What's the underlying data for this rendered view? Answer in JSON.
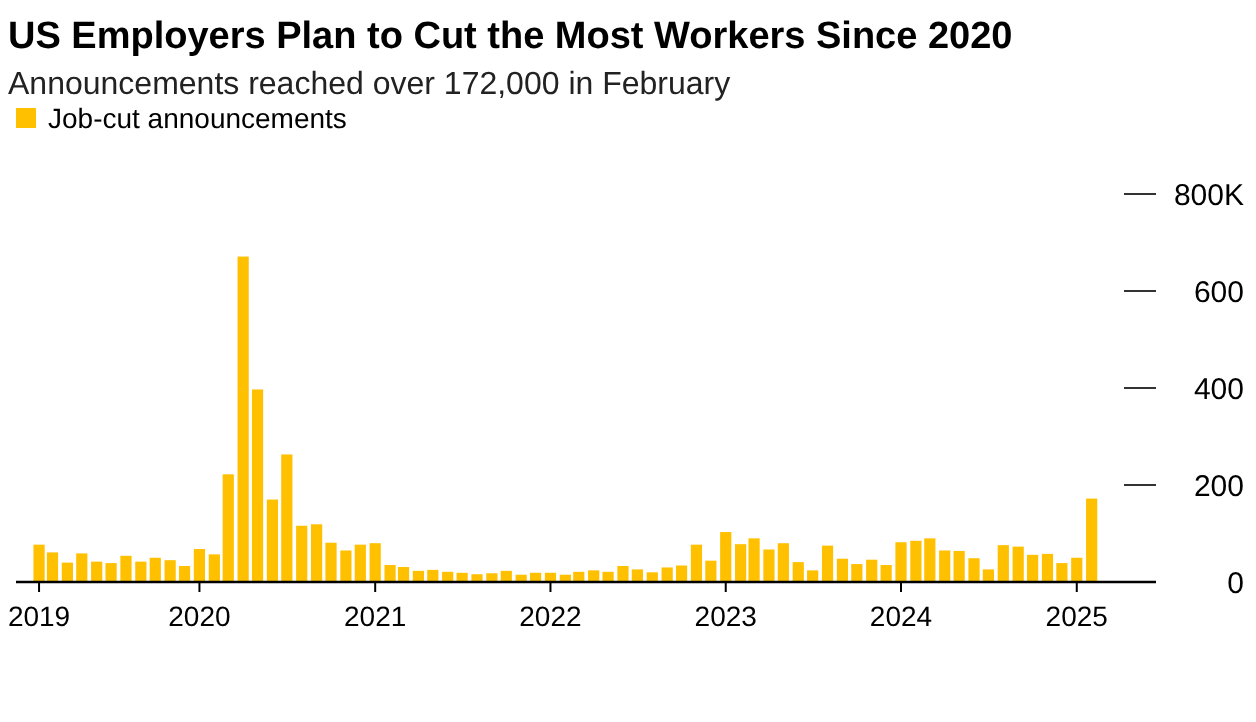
{
  "chart_data": {
    "type": "bar",
    "title": "US Employers Plan to Cut the Most Workers Since 2020",
    "subtitle": "Announcements reached over 172,000 in February",
    "x": [
      "2019-02",
      "2019-03",
      "2019-04",
      "2019-05",
      "2019-06",
      "2019-07",
      "2019-08",
      "2019-09",
      "2019-10",
      "2019-11",
      "2019-12",
      "2020-01",
      "2020-02",
      "2020-03",
      "2020-04",
      "2020-05",
      "2020-06",
      "2020-07",
      "2020-08",
      "2020-09",
      "2020-10",
      "2020-11",
      "2020-12",
      "2021-01",
      "2021-02",
      "2021-03",
      "2021-04",
      "2021-05",
      "2021-06",
      "2021-07",
      "2021-08",
      "2021-09",
      "2021-10",
      "2021-11",
      "2021-12",
      "2022-01",
      "2022-02",
      "2022-03",
      "2022-04",
      "2022-05",
      "2022-06",
      "2022-07",
      "2022-08",
      "2022-09",
      "2022-10",
      "2022-11",
      "2022-12",
      "2023-01",
      "2023-02",
      "2023-03",
      "2023-04",
      "2023-05",
      "2023-06",
      "2023-07",
      "2023-08",
      "2023-09",
      "2023-10",
      "2023-11",
      "2023-12",
      "2024-01",
      "2024-02",
      "2024-03",
      "2024-04",
      "2024-05",
      "2024-06",
      "2024-07",
      "2024-08",
      "2024-09",
      "2024-10",
      "2024-11",
      "2024-12",
      "2025-01",
      "2025-02"
    ],
    "series": [
      {
        "name": "Job-cut announcements",
        "color": "#ffc000",
        "values": [
          77,
          61,
          40,
          59,
          42,
          39,
          54,
          42,
          50,
          45,
          33,
          68,
          57,
          222,
          671,
          397,
          170,
          263,
          116,
          119,
          81,
          65,
          77,
          80,
          35,
          31,
          23,
          25,
          21,
          19,
          16,
          18,
          23,
          15,
          19,
          19,
          15,
          21,
          24,
          21,
          33,
          26,
          20,
          30,
          34,
          77,
          44,
          103,
          78,
          90,
          67,
          80,
          41,
          24,
          75,
          48,
          37,
          46,
          35,
          82,
          85,
          90,
          65,
          64,
          49,
          26,
          76,
          73,
          56,
          58,
          39,
          50,
          172
        ]
      }
    ],
    "xlim": [
      "2018-12-15",
      "2025-06-15"
    ],
    "xticks": [
      {
        "value": "2019-02",
        "label": "2019"
      },
      {
        "value": "2020-01",
        "label": "2020"
      },
      {
        "value": "2021-01",
        "label": "2021"
      },
      {
        "value": "2022-01",
        "label": "2022"
      },
      {
        "value": "2023-01",
        "label": "2023"
      },
      {
        "value": "2024-01",
        "label": "2024"
      },
      {
        "value": "2025-01",
        "label": "2025"
      }
    ],
    "ylim": [
      0,
      800
    ],
    "yticks": [
      0,
      200,
      400,
      600,
      {
        "value": 800,
        "label": "800K"
      }
    ],
    "legend": "top left"
  }
}
